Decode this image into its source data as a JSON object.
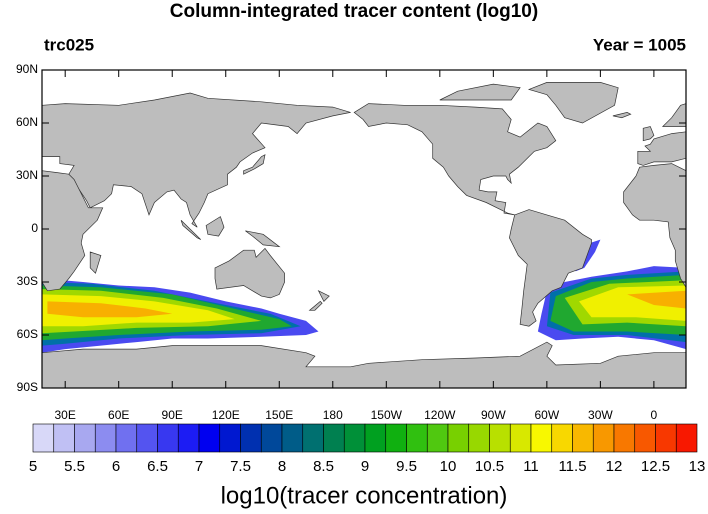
{
  "title": "Column-integrated tracer content (log10)",
  "left_string": "trc025",
  "right_string": "Year = 1005",
  "lat_labels": [
    "90N",
    "60N",
    "30N",
    "0",
    "30S",
    "60S",
    "90S"
  ],
  "lon_labels": [
    "30E",
    "60E",
    "90E",
    "120E",
    "150E",
    "180",
    "150W",
    "120W",
    "90W",
    "60W",
    "30W",
    "0"
  ],
  "colorbar": {
    "labels": [
      5,
      5.5,
      6,
      6.5,
      7,
      7.5,
      8,
      8.5,
      9,
      9.5,
      10,
      10.5,
      11,
      11.5,
      12,
      12.5,
      13
    ],
    "colors": [
      "#d8d8f8",
      "#c0c0f4",
      "#a8a8f0",
      "#8c8cf0",
      "#7070f0",
      "#5454f0",
      "#3838f0",
      "#1c1cf4",
      "#0000f0",
      "#0018d0",
      "#0030b0",
      "#00489a",
      "#005c88",
      "#007070",
      "#008050",
      "#009038",
      "#00a020",
      "#10b010",
      "#30c010",
      "#50c810",
      "#78d000",
      "#98d800",
      "#b8e000",
      "#d8e800",
      "#f8f800",
      "#f8d800",
      "#f8b800",
      "#f89800",
      "#f87800",
      "#f85800",
      "#f83800",
      "#f81800"
    ],
    "title": "log10(tracer concentration)"
  }
}
